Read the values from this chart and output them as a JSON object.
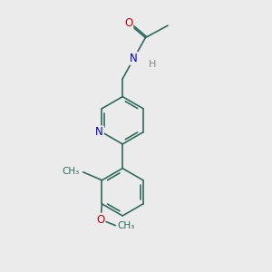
{
  "bg_color": "#ebebeb",
  "bond_color": "#2d6b5e",
  "atom_colors": {
    "O": "#cc0000",
    "N": "#0000cc",
    "C": "#2d6b5e",
    "H": "#888888"
  },
  "font_size_atom": 8.5,
  "font_size_h": 8.0,
  "font_size_small": 7.0,
  "lw": 1.2,
  "dbo": 0.055
}
